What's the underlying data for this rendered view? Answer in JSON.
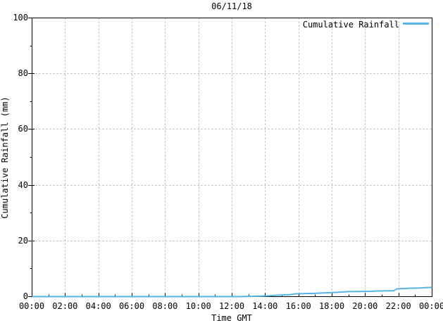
{
  "figure_title": "06/11/18",
  "axes": {
    "x_title": "Time GMT",
    "y_title": "Cumulative Rainfall (mm)"
  },
  "legend": {
    "label": "Cumulative Rainfall"
  },
  "colors": {
    "series_line": "#56b4e9",
    "grid_line": "#b0b0b0",
    "axis_line": "#000000",
    "background": "#ffffff",
    "text": "#000000"
  },
  "chart_data": {
    "type": "line",
    "title": "06/11/18",
    "xlabel": "Time GMT",
    "ylabel": "Cumulative Rainfall (mm)",
    "xlim_hours": [
      0,
      24
    ],
    "ylim": [
      0,
      100
    ],
    "grid": true,
    "grid_style": "dashed",
    "x_major_step_hours": 2,
    "x_minor_step_hours": 1,
    "y_major_step": 20,
    "y_minor_step": 10,
    "x_tick_labels": [
      "00:00",
      "02:00",
      "04:00",
      "06:00",
      "08:00",
      "10:00",
      "12:00",
      "14:00",
      "16:00",
      "18:00",
      "20:00",
      "22:00",
      "00:00"
    ],
    "y_tick_labels": [
      "0",
      "20",
      "40",
      "60",
      "80",
      "100"
    ],
    "legend_position": "top-right",
    "series": [
      {
        "name": "Cumulative Rainfall",
        "color": "#56b4e9",
        "points_time_hours_vs_mm": [
          [
            0.0,
            0.0
          ],
          [
            12.5,
            0.0
          ],
          [
            13.0,
            0.1
          ],
          [
            13.8,
            0.2
          ],
          [
            14.2,
            0.3
          ],
          [
            14.7,
            0.5
          ],
          [
            15.5,
            0.7
          ],
          [
            15.8,
            1.0
          ],
          [
            16.4,
            1.1
          ],
          [
            17.0,
            1.2
          ],
          [
            18.2,
            1.5
          ],
          [
            19.0,
            1.8
          ],
          [
            20.3,
            1.9
          ],
          [
            20.6,
            2.0
          ],
          [
            21.7,
            2.1
          ],
          [
            21.9,
            2.8
          ],
          [
            22.4,
            2.9
          ],
          [
            22.6,
            3.0
          ],
          [
            23.3,
            3.1
          ],
          [
            23.5,
            3.2
          ],
          [
            24.0,
            3.3
          ]
        ]
      }
    ]
  }
}
